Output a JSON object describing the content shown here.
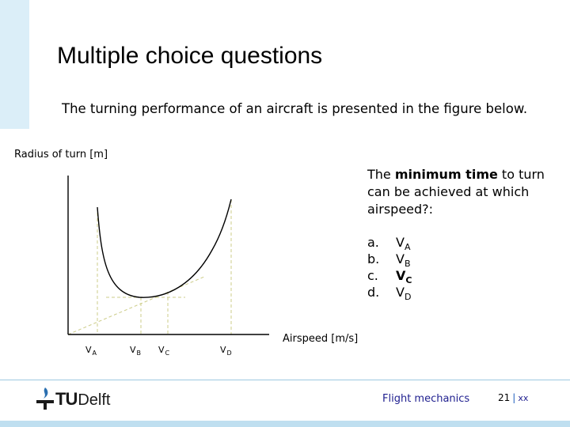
{
  "slide": {
    "title": "Multiple choice questions",
    "intro": "The turning performance of an aircraft is presented in the figure below.",
    "question_pre": "The ",
    "question_bold": "minimum time",
    "question_post": " to turn can be achieved at which airspeed?:",
    "options": [
      {
        "letter": "a.",
        "v": "V",
        "sub": "A",
        "bold": false
      },
      {
        "letter": "b.",
        "v": "V",
        "sub": "B",
        "bold": false
      },
      {
        "letter": "c.",
        "v": "V",
        "sub": "C",
        "bold": true
      },
      {
        "letter": "d.",
        "v": "V",
        "sub": "D",
        "bold": false
      }
    ]
  },
  "chart_data": {
    "type": "line",
    "ylabel": "Radius of turn [m]",
    "xlabel": "Airspeed [m/s]",
    "tick_labels": [
      "VA",
      "VB",
      "VC",
      "VD"
    ],
    "colors": {
      "curve": "#000000",
      "guide": "#cccc88",
      "axes": "#000000"
    }
  },
  "footer": {
    "logo_tu": "TU",
    "logo_delft": "Delft",
    "course": "Flight mechanics",
    "page": "21",
    "separator": "|",
    "total": "xx",
    "line_color": "#9ec8e0"
  }
}
